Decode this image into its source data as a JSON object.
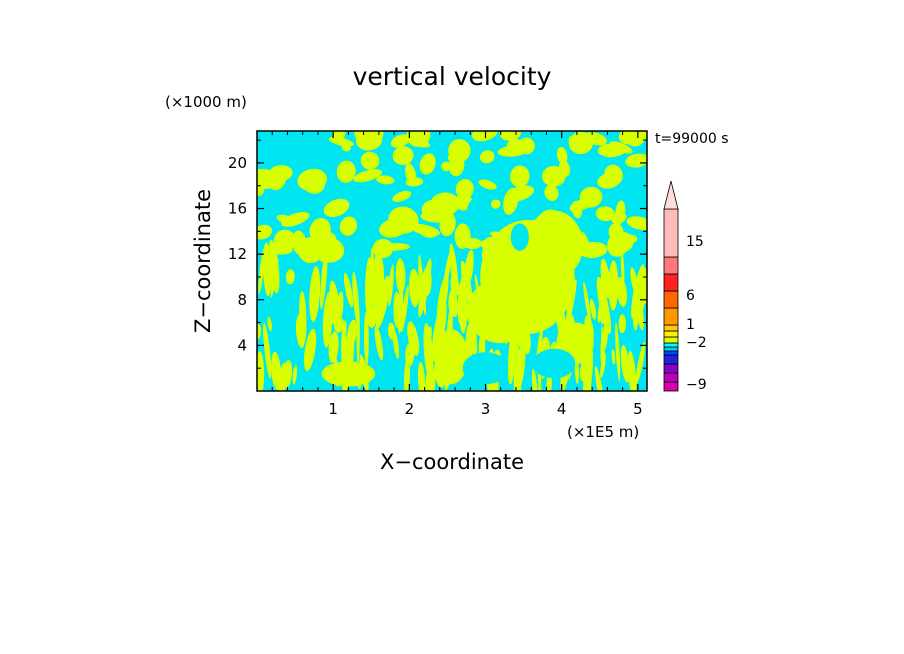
{
  "chart_data": {
    "type": "heatmap",
    "title": "vertical velocity",
    "xlabel": "X−coordinate",
    "ylabel": "Z−coordinate",
    "x_unit": "(×1E5 m)",
    "y_unit": "(×1000 m)",
    "time_label": "t=99000 s",
    "xlim": [
      0,
      5.12
    ],
    "ylim": [
      0,
      22.8
    ],
    "x_ticks": [
      1,
      2,
      3,
      4,
      5
    ],
    "y_ticks": [
      4,
      8,
      12,
      16,
      20
    ],
    "colorbar": {
      "labels": [
        "15",
        "6",
        "1",
        "−2",
        "−9"
      ],
      "levels": [
        -12,
        -9,
        -6,
        -3,
        -2,
        -1,
        0,
        1,
        2,
        3,
        6,
        9,
        12,
        15,
        18,
        24
      ],
      "colors": [
        "#dd00aa",
        "#bb00bb",
        "#8800cc",
        "#2222dd",
        "#0044ff",
        "#00ccff",
        "#00ffff",
        "#ddff00",
        "#ffee00",
        "#ffcc00",
        "#ff9900",
        "#ff6600",
        "#ff2222",
        "#ff7777",
        "#ffbbbb"
      ],
      "extend": "max"
    },
    "dominant_fields": [
      {
        "name": "negative",
        "color": "#00e6f0",
        "range": [
          -1,
          0
        ]
      },
      {
        "name": "positive",
        "color": "#d8ff00",
        "range": [
          0,
          1
        ]
      }
    ]
  }
}
